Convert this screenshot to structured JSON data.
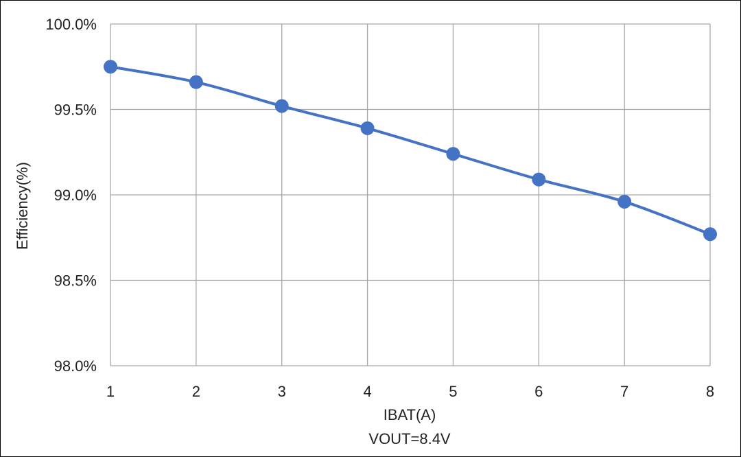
{
  "chart_data": {
    "type": "line",
    "x": [
      1,
      2,
      3,
      4,
      5,
      6,
      7,
      8
    ],
    "series": [
      {
        "values": [
          99.75,
          99.66,
          99.52,
          99.39,
          99.24,
          99.09,
          98.96,
          98.77
        ]
      }
    ],
    "xlabel": "IBAT(A)",
    "xlabel2": "VOUT=8.4V",
    "ylabel": "Efficiency(%)",
    "xlim": [
      1,
      8
    ],
    "ylim": [
      98.0,
      100.0
    ],
    "x_ticks": [
      "1",
      "2",
      "3",
      "4",
      "5",
      "6",
      "7",
      "8"
    ],
    "y_ticks": [
      "100.0%",
      "99.5%",
      "99.0%",
      "98.5%",
      "98.0%"
    ],
    "y_tick_values": [
      100.0,
      99.5,
      99.0,
      98.5,
      98.0
    ],
    "grid": true,
    "legend": "none",
    "colors": {
      "series": "#4472c4",
      "grid": "#a6a6a6",
      "text": "#222222"
    }
  }
}
